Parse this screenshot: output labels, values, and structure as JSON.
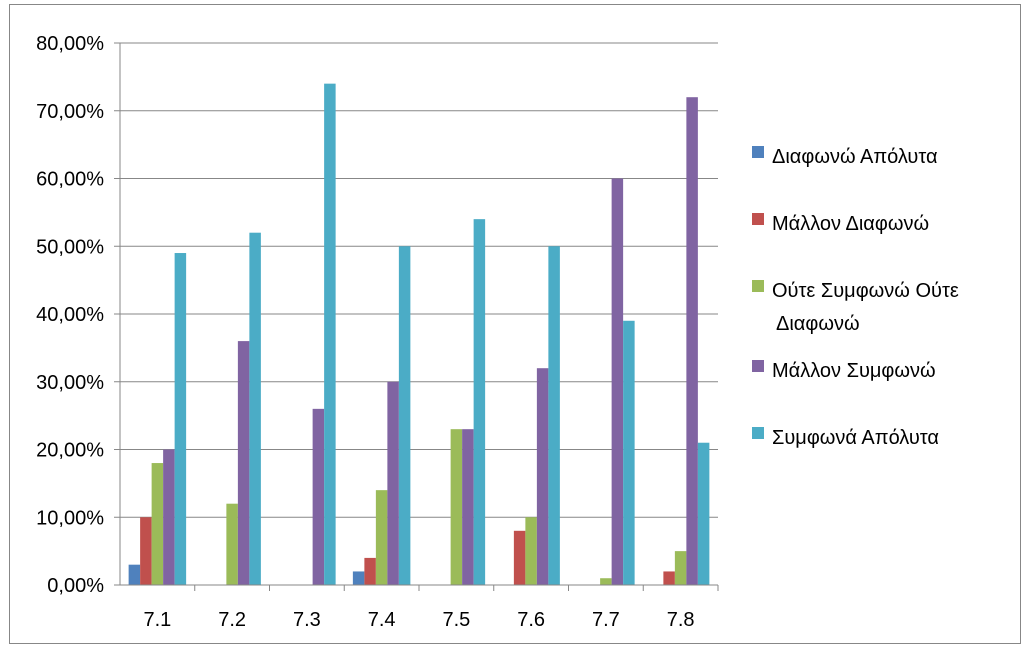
{
  "chart_data": {
    "type": "bar",
    "title": "",
    "xlabel": "",
    "ylabel": "",
    "categories": [
      "7.1",
      "7.2",
      "7.3",
      "7.4",
      "7.5",
      "7.6",
      "7.7",
      "7.8"
    ],
    "ylim": [
      0,
      80
    ],
    "ytick_step": 10,
    "ytick_labels": [
      "0,00%",
      "10,00%",
      "20,00%",
      "30,00%",
      "40,00%",
      "50,00%",
      "60,00%",
      "70,00%",
      "80,00%"
    ],
    "grid": true,
    "legend_position": "right",
    "series": [
      {
        "name": "Διαφωνώ Απόλυτα",
        "color": "#4F81BD",
        "values": [
          3,
          0,
          0,
          2,
          0,
          0,
          0,
          0
        ]
      },
      {
        "name": "Μάλλον Διαφωνώ",
        "color": "#C0504D",
        "values": [
          10,
          0,
          0,
          4,
          0,
          8,
          0,
          2
        ]
      },
      {
        "name": "Ούτε Συμφωνώ Ούτε Διαφωνώ",
        "color": "#9BBB59",
        "values": [
          18,
          12,
          0,
          14,
          23,
          10,
          1,
          5
        ]
      },
      {
        "name": "Μάλλον Συμφωνώ",
        "color": "#8064A2",
        "values": [
          20,
          36,
          26,
          30,
          23,
          32,
          60,
          72
        ]
      },
      {
        "name": "Συμφωνά Απόλυτα",
        "color": "#4BACC6",
        "values": [
          49,
          52,
          74,
          50,
          54,
          50,
          39,
          21
        ]
      }
    ]
  }
}
